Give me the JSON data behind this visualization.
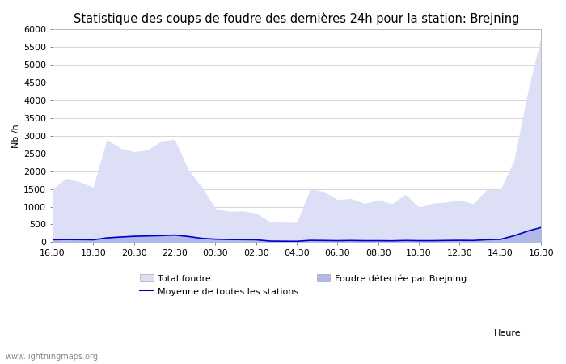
{
  "title": "Statistique des coups de foudre des dernières 24h pour la station: Brejning",
  "ylabel": "Nb /h",
  "xlabel": "Heure",
  "watermark": "www.lightningmaps.org",
  "ylim": [
    0,
    6000
  ],
  "yticks": [
    0,
    500,
    1000,
    1500,
    2000,
    2500,
    3000,
    3500,
    4000,
    4500,
    5000,
    5500,
    6000
  ],
  "xtick_labels": [
    "16:30",
    "18:30",
    "20:30",
    "22:30",
    "00:30",
    "02:30",
    "04:30",
    "06:30",
    "08:30",
    "10:30",
    "12:30",
    "14:30",
    "16:30"
  ],
  "total_foudre_color": "#dcdff5",
  "brejning_color": "#b0b8e8",
  "moyenne_color": "#0000cc",
  "background_color": "#ffffff",
  "grid_color": "#d0d0d0",
  "title_fontsize": 10.5,
  "legend_fontsize": 8,
  "tick_fontsize": 8,
  "total_foudre": [
    1500,
    1800,
    1700,
    1550,
    2900,
    2650,
    2550,
    2600,
    2850,
    2900,
    2050,
    1550,
    950,
    870,
    880,
    820,
    580,
    560,
    560,
    1500,
    1430,
    1200,
    1230,
    1090,
    1200,
    1080,
    1350,
    980,
    1100,
    1130,
    1190,
    1080,
    1480,
    1480,
    2300,
    4200,
    5800
  ],
  "brejning": [
    75,
    85,
    80,
    75,
    140,
    170,
    195,
    205,
    215,
    235,
    185,
    125,
    95,
    85,
    80,
    75,
    38,
    32,
    28,
    58,
    52,
    47,
    52,
    47,
    47,
    42,
    52,
    47,
    47,
    52,
    57,
    52,
    75,
    85,
    195,
    340,
    445
  ],
  "moyenne": [
    70,
    75,
    72,
    68,
    120,
    145,
    165,
    175,
    185,
    200,
    160,
    108,
    85,
    75,
    72,
    68,
    32,
    28,
    25,
    52,
    48,
    42,
    48,
    42,
    42,
    38,
    48,
    42,
    42,
    48,
    52,
    48,
    70,
    80,
    180,
    310,
    415
  ],
  "n_points": 37
}
